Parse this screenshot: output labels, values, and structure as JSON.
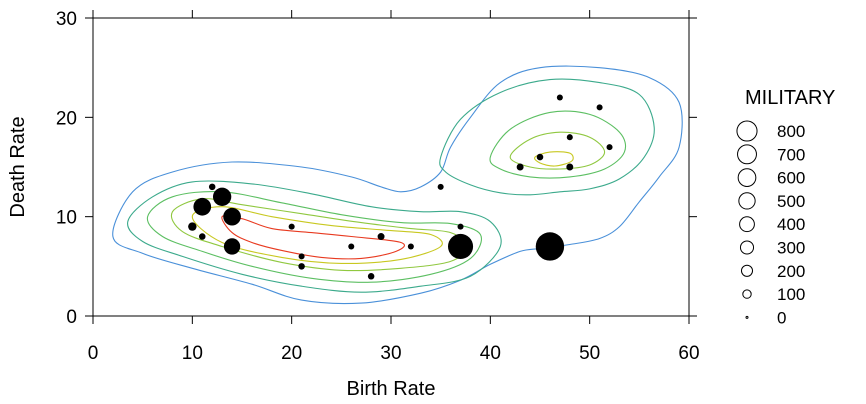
{
  "chart_data": {
    "type": "scatter",
    "title": "",
    "xlabel": "Birth Rate",
    "ylabel": "Death Rate",
    "xlim": [
      0,
      60
    ],
    "ylim": [
      0,
      30
    ],
    "xticks": [
      0,
      10,
      20,
      30,
      40,
      50,
      60
    ],
    "yticks": [
      0,
      10,
      20,
      30
    ],
    "grid": false,
    "legend": {
      "title": "MILITARY",
      "position": "right",
      "entries": [
        {
          "label": "800",
          "value": 800
        },
        {
          "label": "700",
          "value": 700
        },
        {
          "label": "600",
          "value": 600
        },
        {
          "label": "500",
          "value": 500
        },
        {
          "label": "400",
          "value": 400
        },
        {
          "label": "300",
          "value": 300
        },
        {
          "label": "200",
          "value": 200
        },
        {
          "label": "100",
          "value": 100
        },
        {
          "label": "0",
          "value": 0
        }
      ]
    },
    "points": [
      {
        "x": 10,
        "y": 9,
        "military": 100
      },
      {
        "x": 11,
        "y": 8,
        "military": 50
      },
      {
        "x": 11,
        "y": 11,
        "military": 600
      },
      {
        "x": 12,
        "y": 13,
        "military": 50
      },
      {
        "x": 13,
        "y": 12,
        "military": 650
      },
      {
        "x": 14,
        "y": 10,
        "military": 600
      },
      {
        "x": 14,
        "y": 7,
        "military": 500
      },
      {
        "x": 20,
        "y": 9,
        "military": 40
      },
      {
        "x": 21,
        "y": 6,
        "military": 40
      },
      {
        "x": 21,
        "y": 5,
        "military": 50
      },
      {
        "x": 26,
        "y": 7,
        "military": 40
      },
      {
        "x": 28,
        "y": 4,
        "military": 50
      },
      {
        "x": 29,
        "y": 8,
        "military": 60
      },
      {
        "x": 32,
        "y": 7,
        "military": 40
      },
      {
        "x": 35,
        "y": 13,
        "military": 40
      },
      {
        "x": 37,
        "y": 9,
        "military": 40
      },
      {
        "x": 37,
        "y": 7,
        "military": 1300
      },
      {
        "x": 43,
        "y": 15,
        "military": 60
      },
      {
        "x": 45,
        "y": 16,
        "military": 50
      },
      {
        "x": 46,
        "y": 7,
        "military": 1700
      },
      {
        "x": 47,
        "y": 22,
        "military": 40
      },
      {
        "x": 48,
        "y": 18,
        "military": 40
      },
      {
        "x": 48,
        "y": 15,
        "military": 60
      },
      {
        "x": 51,
        "y": 21,
        "military": 40
      },
      {
        "x": 52,
        "y": 17,
        "military": 40
      }
    ],
    "contours": [
      {
        "level": 1,
        "color": "#4a90d9",
        "rings": [
          [
            [
              2,
              8
            ],
            [
              4,
              12.5
            ],
            [
              8,
              14.5
            ],
            [
              14,
              15.5
            ],
            [
              21,
              15
            ],
            [
              26,
              14
            ],
            [
              29,
              13
            ],
            [
              31,
              12.5
            ],
            [
              33,
              13
            ],
            [
              35,
              14.5
            ],
            [
              36,
              17
            ],
            [
              38,
              20
            ],
            [
              41,
              23.5
            ],
            [
              45,
              25
            ],
            [
              51,
              25
            ],
            [
              56,
              24
            ],
            [
              59,
              21.5
            ],
            [
              59,
              17
            ],
            [
              57,
              14
            ],
            [
              55,
              11.5
            ],
            [
              53,
              9
            ],
            [
              51,
              7.8
            ],
            [
              48,
              7.2
            ],
            [
              45,
              6.8
            ],
            [
              43,
              6.5
            ],
            [
              40,
              5.2
            ],
            [
              37,
              3.6
            ],
            [
              33,
              2.3
            ],
            [
              27,
              1.3
            ],
            [
              21,
              1.6
            ],
            [
              16,
              3.2
            ],
            [
              10,
              4.8
            ],
            [
              5,
              6.3
            ],
            [
              2,
              8
            ]
          ]
        ]
      },
      {
        "level": 2,
        "color": "#3caa8c",
        "rings": [
          [
            [
              3.5,
              9.5
            ],
            [
              6,
              12
            ],
            [
              10,
              13.5
            ],
            [
              16,
              13.3
            ],
            [
              22,
              12.3
            ],
            [
              28,
              11
            ],
            [
              33,
              10.5
            ],
            [
              37,
              10.5
            ],
            [
              40,
              9.5
            ],
            [
              41,
              7
            ],
            [
              38,
              4
            ],
            [
              33,
              3
            ],
            [
              27,
              2.4
            ],
            [
              21,
              3
            ],
            [
              15,
              4.2
            ],
            [
              9,
              6
            ],
            [
              5,
              7.5
            ],
            [
              3.5,
              9.5
            ]
          ],
          [
            [
              35,
              16
            ],
            [
              37,
              19.8
            ],
            [
              41,
              22.5
            ],
            [
              46,
              23.8
            ],
            [
              51,
              23.5
            ],
            [
              55,
              22.3
            ],
            [
              56.5,
              19
            ],
            [
              55.5,
              16
            ],
            [
              53,
              13.8
            ],
            [
              50,
              12.8
            ],
            [
              47,
              12.5
            ],
            [
              44,
              12.2
            ],
            [
              41,
              12.4
            ],
            [
              38,
              13.2
            ],
            [
              35.5,
              14.5
            ],
            [
              35,
              16
            ]
          ]
        ]
      },
      {
        "level": 3,
        "color": "#5cbf62",
        "rings": [
          [
            [
              5.5,
              10
            ],
            [
              8,
              12
            ],
            [
              13,
              12.5
            ],
            [
              19,
              11.4
            ],
            [
              25,
              10.2
            ],
            [
              31,
              9.4
            ],
            [
              36,
              9.3
            ],
            [
              39,
              8.2
            ],
            [
              38,
              5.8
            ],
            [
              34,
              4.2
            ],
            [
              28,
              3.4
            ],
            [
              22,
              3.8
            ],
            [
              16,
              5
            ],
            [
              11,
              6.5
            ],
            [
              7,
              8
            ],
            [
              5.5,
              10
            ]
          ],
          [
            [
              40,
              16
            ],
            [
              42,
              18.8
            ],
            [
              46,
              20.5
            ],
            [
              50,
              20.3
            ],
            [
              53,
              18.5
            ],
            [
              53.5,
              16.5
            ],
            [
              51.5,
              14.8
            ],
            [
              48,
              14
            ],
            [
              44,
              14
            ],
            [
              41,
              14.8
            ],
            [
              40,
              16
            ]
          ]
        ]
      },
      {
        "level": 4,
        "color": "#90c840",
        "rings": [
          [
            [
              8,
              10.5
            ],
            [
              11,
              11.8
            ],
            [
              15,
              11.2
            ],
            [
              21,
              10.3
            ],
            [
              27,
              9.4
            ],
            [
              32,
              8.8
            ],
            [
              36,
              8.4
            ],
            [
              37.5,
              7
            ],
            [
              36,
              5.5
            ],
            [
              31,
              4.8
            ],
            [
              25,
              4.6
            ],
            [
              19,
              5.4
            ],
            [
              13,
              7
            ],
            [
              9,
              8.5
            ],
            [
              8,
              10.5
            ]
          ],
          [
            [
              42,
              16
            ],
            [
              44,
              17.8
            ],
            [
              47,
              18.5
            ],
            [
              50,
              18
            ],
            [
              51.5,
              16.5
            ],
            [
              50,
              15.2
            ],
            [
              47,
              14.8
            ],
            [
              44,
              15
            ],
            [
              42,
              16
            ]
          ]
        ]
      },
      {
        "level": 5,
        "color": "#c8c820",
        "rings": [
          [
            [
              10,
              10
            ],
            [
              13,
              11
            ],
            [
              18,
              10
            ],
            [
              24,
              9.1
            ],
            [
              30,
              8.6
            ],
            [
              34,
              8.2
            ],
            [
              35,
              7
            ],
            [
              31,
              5.7
            ],
            [
              25,
              5.3
            ],
            [
              19,
              5.9
            ],
            [
              13,
              7.4
            ],
            [
              10,
              10
            ]
          ],
          [
            [
              44.5,
              16
            ],
            [
              46,
              16.5
            ],
            [
              48,
              16.4
            ],
            [
              48.2,
              15.6
            ],
            [
              46.5,
              15.1
            ],
            [
              45,
              15.4
            ],
            [
              44.5,
              16
            ]
          ]
        ]
      },
      {
        "level": 6,
        "color": "#e83a20",
        "rings": [
          [
            [
              13,
              10
            ],
            [
              15,
              9.8
            ],
            [
              18,
              8.8
            ],
            [
              22,
              8.4
            ],
            [
              26,
              8
            ],
            [
              31,
              7.4
            ],
            [
              30.5,
              6.5
            ],
            [
              27,
              5.8
            ],
            [
              23,
              5.9
            ],
            [
              19,
              6.6
            ],
            [
              16,
              7.4
            ],
            [
              14,
              8.4
            ],
            [
              13,
              10
            ]
          ]
        ]
      }
    ]
  }
}
